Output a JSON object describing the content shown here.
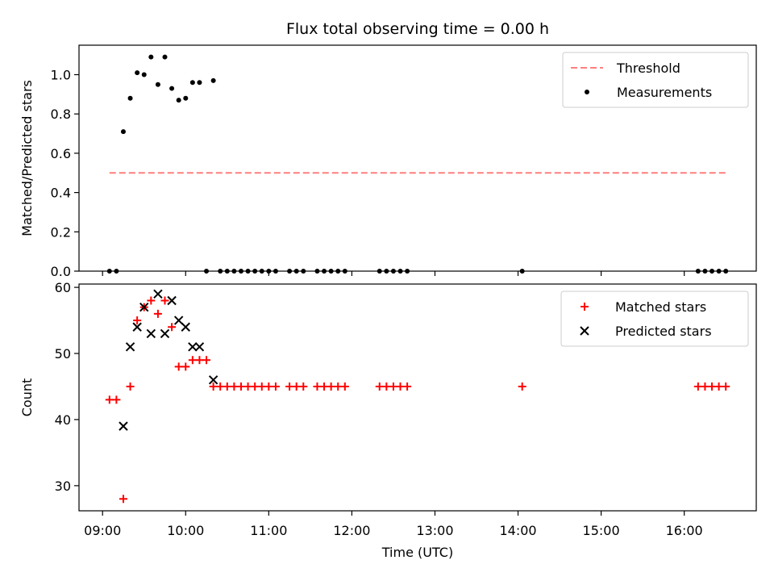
{
  "chart_data": [
    {
      "type": "scatter",
      "title": "Flux total observing time = 0.00 h",
      "xlabel": "",
      "ylabel": "Matched/Predicted stars",
      "xlim": [
        "08:43",
        "16:52"
      ],
      "ylim": [
        0,
        1.15
      ],
      "yticks": [
        0.0,
        0.2,
        0.4,
        0.6,
        0.8,
        1.0
      ],
      "ytick_labels": [
        "0.0",
        "0.2",
        "0.4",
        "0.6",
        "0.8",
        "1.0"
      ],
      "legend_position": "top-right",
      "series": [
        {
          "name": "Threshold",
          "kind": "line",
          "style": "dashed",
          "color": "#ff7f7f",
          "x": [
            "09:05",
            "16:30"
          ],
          "y": [
            0.5,
            0.5
          ]
        },
        {
          "name": "Measurements",
          "kind": "scatter",
          "marker": "dot",
          "color": "#000000",
          "x": [
            "09:05",
            "09:10",
            "09:15",
            "09:20",
            "09:25",
            "09:30",
            "09:35",
            "09:40",
            "09:45",
            "09:50",
            "09:55",
            "10:00",
            "10:05",
            "10:10",
            "10:15",
            "10:20",
            "10:25",
            "10:30",
            "10:35",
            "10:40",
            "10:45",
            "10:50",
            "10:55",
            "11:00",
            "11:05",
            "11:15",
            "11:20",
            "11:25",
            "11:35",
            "11:40",
            "11:45",
            "11:50",
            "11:55",
            "12:20",
            "12:25",
            "12:30",
            "12:35",
            "12:40",
            "14:03",
            "16:10",
            "16:15",
            "16:20",
            "16:25",
            "16:30"
          ],
          "y": [
            0,
            0,
            0.71,
            0.88,
            1.01,
            1.0,
            1.09,
            0.95,
            1.09,
            0.93,
            0.87,
            0.88,
            0.96,
            0.96,
            0,
            0.97,
            0,
            0,
            0,
            0,
            0,
            0,
            0,
            0,
            0,
            0,
            0,
            0,
            0,
            0,
            0,
            0,
            0,
            0,
            0,
            0,
            0,
            0,
            0,
            0,
            0,
            0,
            0,
            0
          ]
        }
      ]
    },
    {
      "type": "scatter",
      "title": "",
      "xlabel": "Time (UTC)",
      "ylabel": "Count",
      "xlim": [
        "08:43",
        "16:52"
      ],
      "ylim": [
        26.2,
        60.5
      ],
      "yticks": [
        30,
        40,
        50,
        60
      ],
      "ytick_labels": [
        "30",
        "40",
        "50",
        "60"
      ],
      "xticks": [
        "09:00",
        "10:00",
        "11:00",
        "12:00",
        "13:00",
        "14:00",
        "15:00",
        "16:00"
      ],
      "legend_position": "top-right",
      "series": [
        {
          "name": "Matched stars",
          "kind": "scatter",
          "marker": "plus",
          "color": "#ff0000",
          "x": [
            "09:05",
            "09:10",
            "09:15",
            "09:20",
            "09:25",
            "09:30",
            "09:35",
            "09:40",
            "09:45",
            "09:50",
            "09:55",
            "10:00",
            "10:05",
            "10:10",
            "10:15",
            "10:20",
            "10:25",
            "10:30",
            "10:35",
            "10:40",
            "10:45",
            "10:50",
            "10:55",
            "11:00",
            "11:05",
            "11:15",
            "11:20",
            "11:25",
            "11:35",
            "11:40",
            "11:45",
            "11:50",
            "11:55",
            "12:20",
            "12:25",
            "12:30",
            "12:35",
            "12:40",
            "14:03",
            "16:10",
            "16:15",
            "16:20",
            "16:25",
            "16:30"
          ],
          "y": [
            43,
            43,
            28,
            45,
            55,
            57,
            58,
            56,
            58,
            54,
            48,
            48,
            49,
            49,
            49,
            45,
            45,
            45,
            45,
            45,
            45,
            45,
            45,
            45,
            45,
            45,
            45,
            45,
            45,
            45,
            45,
            45,
            45,
            45,
            45,
            45,
            45,
            45,
            45,
            45,
            45,
            45,
            45,
            45
          ]
        },
        {
          "name": "Predicted stars",
          "kind": "scatter",
          "marker": "x",
          "color": "#000000",
          "x": [
            "09:15",
            "09:20",
            "09:25",
            "09:30",
            "09:35",
            "09:40",
            "09:45",
            "09:50",
            "09:55",
            "10:00",
            "10:05",
            "10:10",
            "10:20"
          ],
          "y": [
            39,
            51,
            54,
            57,
            53,
            59,
            53,
            58,
            55,
            54,
            51,
            51,
            46
          ]
        }
      ]
    }
  ]
}
